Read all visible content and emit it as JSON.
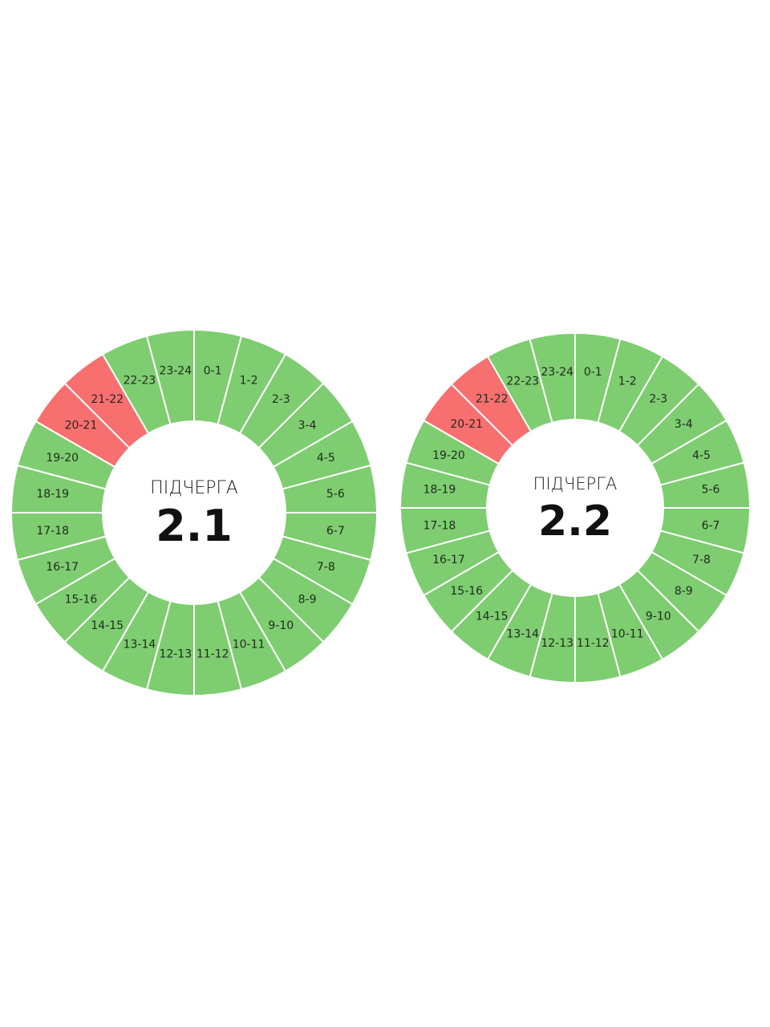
{
  "colors": {
    "on": "#7ecd70",
    "off": "#f76f6f",
    "divider": "#ffffff"
  },
  "legend_note": "",
  "chart_data": [
    {
      "type": "pie",
      "caption": "ПІДЧЕРГА",
      "number": "2.1",
      "categories": [
        "0-1",
        "1-2",
        "2-3",
        "3-4",
        "4-5",
        "5-6",
        "6-7",
        "7-8",
        "8-9",
        "9-10",
        "10-11",
        "11-12",
        "12-13",
        "13-14",
        "14-15",
        "15-16",
        "16-17",
        "17-18",
        "18-19",
        "19-20",
        "20-21",
        "21-22",
        "22-23",
        "23-24"
      ],
      "values": [
        1,
        1,
        1,
        1,
        1,
        1,
        1,
        1,
        1,
        1,
        1,
        1,
        1,
        1,
        1,
        1,
        1,
        1,
        1,
        1,
        1,
        1,
        1,
        1
      ],
      "status": [
        "on",
        "on",
        "on",
        "on",
        "on",
        "on",
        "on",
        "on",
        "on",
        "on",
        "on",
        "on",
        "on",
        "on",
        "on",
        "on",
        "on",
        "on",
        "on",
        "on",
        "off",
        "off",
        "on",
        "on"
      ]
    },
    {
      "type": "pie",
      "caption": "ПІДЧЕРГА",
      "number": "2.2",
      "categories": [
        "0-1",
        "1-2",
        "2-3",
        "3-4",
        "4-5",
        "5-6",
        "6-7",
        "7-8",
        "8-9",
        "9-10",
        "10-11",
        "11-12",
        "12-13",
        "13-14",
        "14-15",
        "15-16",
        "16-17",
        "17-18",
        "18-19",
        "19-20",
        "20-21",
        "21-22",
        "22-23",
        "23-24"
      ],
      "values": [
        1,
        1,
        1,
        1,
        1,
        1,
        1,
        1,
        1,
        1,
        1,
        1,
        1,
        1,
        1,
        1,
        1,
        1,
        1,
        1,
        1,
        1,
        1,
        1
      ],
      "status": [
        "on",
        "on",
        "on",
        "on",
        "on",
        "on",
        "on",
        "on",
        "on",
        "on",
        "on",
        "on",
        "on",
        "on",
        "on",
        "on",
        "on",
        "on",
        "on",
        "on",
        "off",
        "off",
        "on",
        "on"
      ]
    }
  ]
}
